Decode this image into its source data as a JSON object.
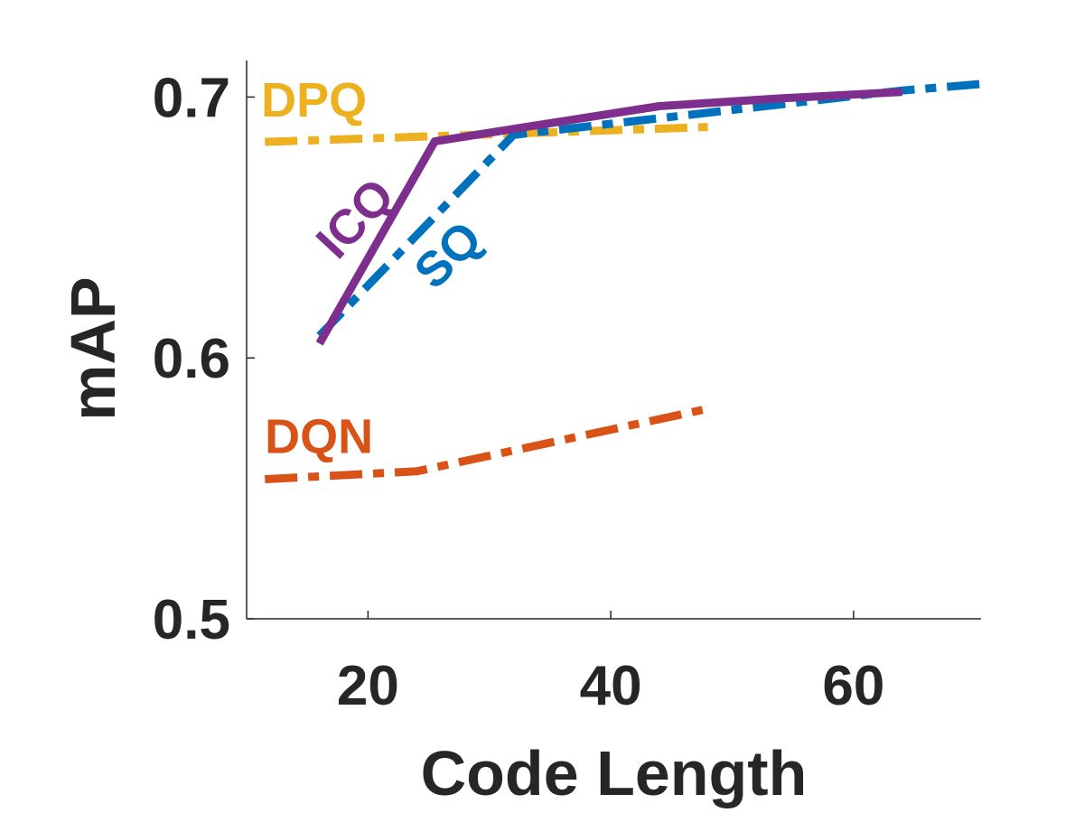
{
  "chart_data": {
    "type": "line",
    "xlabel": "Code Length",
    "ylabel": "mAP",
    "xlim": [
      10,
      70.5
    ],
    "ylim": [
      0.5,
      0.714
    ],
    "xticks": [
      20,
      40,
      60
    ],
    "yticks": [
      0.5,
      0.6,
      0.7
    ],
    "xtick_labels": [
      "20",
      "40",
      "60"
    ],
    "ytick_labels": [
      "0.5",
      "0.6",
      "0.7"
    ],
    "grid": false,
    "legend": "none (inline series labels)",
    "series": [
      {
        "name": "DPQ",
        "color": "#EDB120",
        "style": "dash-dot",
        "x": [
          11.5,
          48
        ],
        "y": [
          0.6828,
          0.6885
        ],
        "label_x": 11.2,
        "label_y": 0.6925,
        "label_angle": 0
      },
      {
        "name": "DQN",
        "color": "#D95319",
        "style": "dash-dot",
        "x": [
          11.5,
          24,
          48
        ],
        "y": [
          0.5535,
          0.5565,
          0.5805
        ],
        "label_x": 11.5,
        "label_y": 0.5635,
        "label_angle": 0
      },
      {
        "name": "SQ",
        "color": "#0072BD",
        "style": "dash-dot",
        "x": [
          16,
          32,
          64,
          70.5
        ],
        "y": [
          0.6085,
          0.6855,
          0.7025,
          0.705
        ],
        "label_x": 25.5,
        "label_y": 0.6255,
        "label_angle": -45
      },
      {
        "name": "ICQ",
        "color": "#7E2F8E",
        "style": "solid",
        "x": [
          16,
          25.5,
          33,
          44,
          54,
          64
        ],
        "y": [
          0.6055,
          0.683,
          0.6885,
          0.6965,
          0.6995,
          0.702
        ],
        "label_x": 17.5,
        "label_y": 0.637,
        "label_angle": -47
      }
    ]
  }
}
